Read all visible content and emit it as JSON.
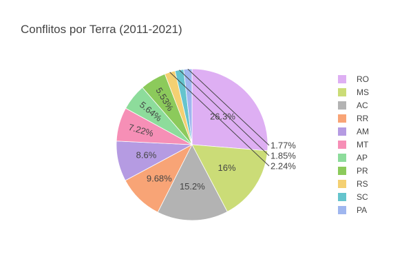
{
  "chart_data": {
    "type": "pie",
    "title": "Conflitos por Terra (2011-2021)",
    "legend_position": "right",
    "slices": [
      {
        "label": "RO",
        "percent": 26.3,
        "color": "#deaff3"
      },
      {
        "label": "MS",
        "percent": 16.0,
        "percent_text": "16%",
        "color": "#cbdc77"
      },
      {
        "label": "AC",
        "percent": 15.2,
        "color": "#b3b3b3"
      },
      {
        "label": "RR",
        "percent": 9.68,
        "color": "#f8a476"
      },
      {
        "label": "AM",
        "percent": 8.6,
        "color": "#b59be2"
      },
      {
        "label": "MT",
        "percent": 7.22,
        "color": "#f68fb6"
      },
      {
        "label": "AP",
        "percent": 5.64,
        "color": "#8ddc9b"
      },
      {
        "label": "PR",
        "percent": 5.53,
        "color": "#8cca5b"
      },
      {
        "label": "RS",
        "percent": 2.24,
        "color": "#f4d072"
      },
      {
        "label": "SC",
        "percent": 1.85,
        "color": "#65c4cd"
      },
      {
        "label": "PA",
        "percent": 1.77,
        "color": "#9fb6ef"
      }
    ]
  }
}
